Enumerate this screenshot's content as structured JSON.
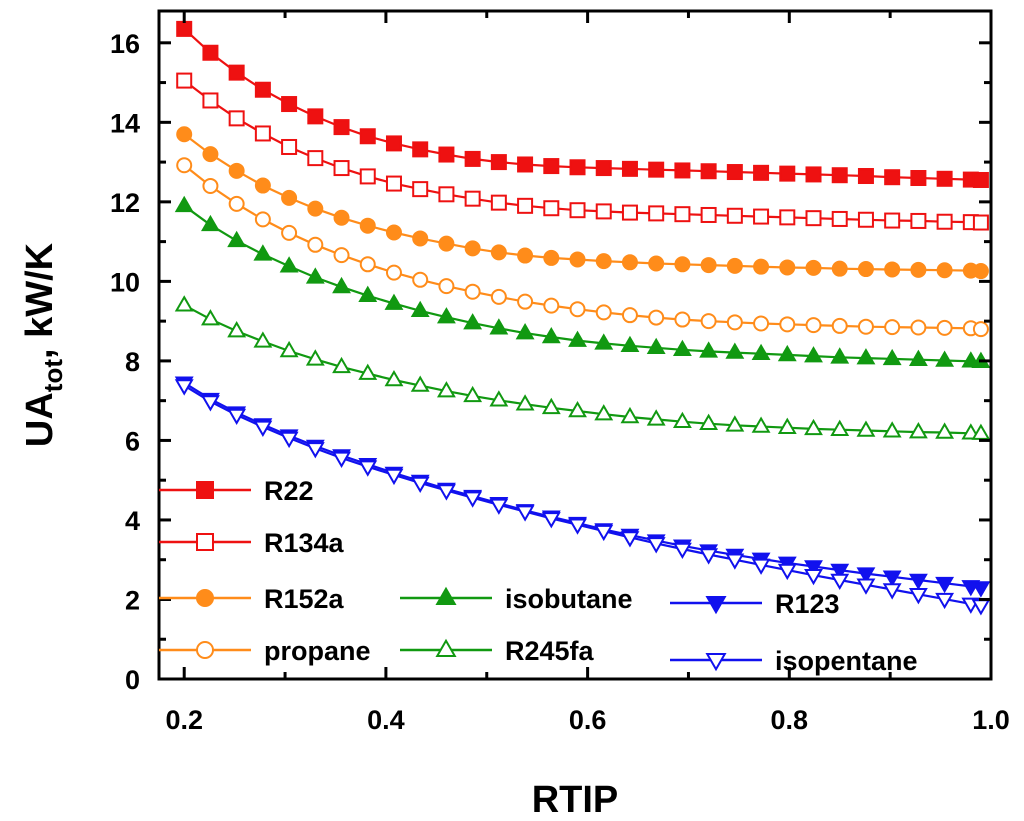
{
  "chart_data": {
    "type": "line",
    "title": "",
    "xlabel": "RTIP",
    "ylabel_main": "UA",
    "ylabel_sub": "tot",
    "ylabel_rest": ", kW/K",
    "xlim": [
      0.175,
      1.0
    ],
    "ylim": [
      0,
      16.8
    ],
    "xticks": [
      0.2,
      0.4,
      0.6,
      0.8,
      1.0
    ],
    "xtick_labels": [
      "0.2",
      "0.4",
      "0.6",
      "0.8",
      "1.0"
    ],
    "yticks": [
      0,
      2,
      4,
      6,
      8,
      10,
      12,
      14,
      16
    ],
    "ytick_labels": [
      "0",
      "2",
      "4",
      "6",
      "8",
      "10",
      "12",
      "14",
      "16"
    ],
    "x": [
      0.2,
      0.226,
      0.252,
      0.278,
      0.304,
      0.33,
      0.356,
      0.382,
      0.408,
      0.434,
      0.46,
      0.486,
      0.512,
      0.538,
      0.564,
      0.59,
      0.616,
      0.642,
      0.668,
      0.694,
      0.72,
      0.746,
      0.772,
      0.798,
      0.824,
      0.85,
      0.876,
      0.902,
      0.928,
      0.954,
      0.98,
      0.99
    ],
    "series": [
      {
        "name": "R22",
        "color": "#ee1111",
        "marker": "square",
        "filled": true,
        "values": [
          16.35,
          15.75,
          15.25,
          14.82,
          14.46,
          14.15,
          13.88,
          13.65,
          13.47,
          13.32,
          13.19,
          13.08,
          13.0,
          12.94,
          12.9,
          12.87,
          12.85,
          12.83,
          12.81,
          12.79,
          12.77,
          12.75,
          12.73,
          12.71,
          12.69,
          12.67,
          12.65,
          12.62,
          12.6,
          12.58,
          12.56,
          12.55
        ]
      },
      {
        "name": "R134a",
        "color": "#ee1111",
        "marker": "square",
        "filled": false,
        "values": [
          15.05,
          14.55,
          14.1,
          13.72,
          13.38,
          13.1,
          12.85,
          12.64,
          12.46,
          12.32,
          12.19,
          12.08,
          11.98,
          11.9,
          11.84,
          11.79,
          11.76,
          11.73,
          11.71,
          11.69,
          11.67,
          11.65,
          11.63,
          11.61,
          11.59,
          11.57,
          11.55,
          11.53,
          11.52,
          11.5,
          11.49,
          11.48
        ]
      },
      {
        "name": "R152a",
        "color": "#ff8c1a",
        "marker": "circle",
        "filled": true,
        "values": [
          13.7,
          13.2,
          12.78,
          12.41,
          12.1,
          11.83,
          11.6,
          11.4,
          11.23,
          11.08,
          10.95,
          10.83,
          10.73,
          10.65,
          10.59,
          10.55,
          10.51,
          10.48,
          10.45,
          10.43,
          10.41,
          10.39,
          10.37,
          10.35,
          10.34,
          10.32,
          10.31,
          10.3,
          10.29,
          10.28,
          10.27,
          10.26
        ]
      },
      {
        "name": "propane",
        "color": "#ff8c1a",
        "marker": "circle",
        "filled": false,
        "values": [
          12.92,
          12.4,
          11.95,
          11.56,
          11.22,
          10.92,
          10.66,
          10.43,
          10.22,
          10.04,
          9.88,
          9.74,
          9.61,
          9.49,
          9.39,
          9.3,
          9.22,
          9.15,
          9.09,
          9.04,
          9.0,
          8.97,
          8.94,
          8.92,
          8.9,
          8.88,
          8.86,
          8.85,
          8.84,
          8.83,
          8.82,
          8.8
        ]
      },
      {
        "name": "isobutane",
        "color": "#119911",
        "marker": "triangle-up",
        "filled": true,
        "values": [
          11.9,
          11.42,
          11.02,
          10.68,
          10.38,
          10.1,
          9.86,
          9.64,
          9.44,
          9.26,
          9.1,
          8.95,
          8.82,
          8.7,
          8.6,
          8.51,
          8.44,
          8.38,
          8.33,
          8.28,
          8.24,
          8.21,
          8.18,
          8.15,
          8.12,
          8.09,
          8.07,
          8.05,
          8.03,
          8.01,
          7.99,
          7.98
        ]
      },
      {
        "name": "R245fa",
        "color": "#119911",
        "marker": "triangle-up",
        "filled": false,
        "values": [
          9.4,
          9.05,
          8.75,
          8.49,
          8.25,
          8.04,
          7.85,
          7.68,
          7.52,
          7.38,
          7.24,
          7.12,
          7.01,
          6.91,
          6.82,
          6.74,
          6.66,
          6.59,
          6.53,
          6.47,
          6.42,
          6.38,
          6.35,
          6.32,
          6.29,
          6.27,
          6.25,
          6.23,
          6.21,
          6.2,
          6.18,
          6.17
        ]
      },
      {
        "name": "R123",
        "color": "#1111ee",
        "marker": "triangle-down",
        "filled": true,
        "values": [
          7.45,
          7.04,
          6.7,
          6.4,
          6.12,
          5.86,
          5.62,
          5.4,
          5.18,
          4.98,
          4.78,
          4.6,
          4.42,
          4.24,
          4.08,
          3.92,
          3.76,
          3.62,
          3.48,
          3.35,
          3.23,
          3.12,
          3.02,
          2.92,
          2.83,
          2.74,
          2.65,
          2.57,
          2.49,
          2.41,
          2.33,
          2.3
        ]
      },
      {
        "name": "isopentane",
        "color": "#1111ee",
        "marker": "triangle-down",
        "filled": false,
        "values": [
          7.38,
          6.98,
          6.64,
          6.34,
          6.06,
          5.8,
          5.56,
          5.34,
          5.13,
          4.93,
          4.74,
          4.56,
          4.38,
          4.21,
          4.04,
          3.88,
          3.72,
          3.56,
          3.41,
          3.27,
          3.13,
          3.0,
          2.87,
          2.74,
          2.61,
          2.49,
          2.37,
          2.25,
          2.13,
          2.01,
          1.89,
          1.85
        ]
      }
    ],
    "legend_placement": "bottom-left, inside axes, three columns"
  }
}
